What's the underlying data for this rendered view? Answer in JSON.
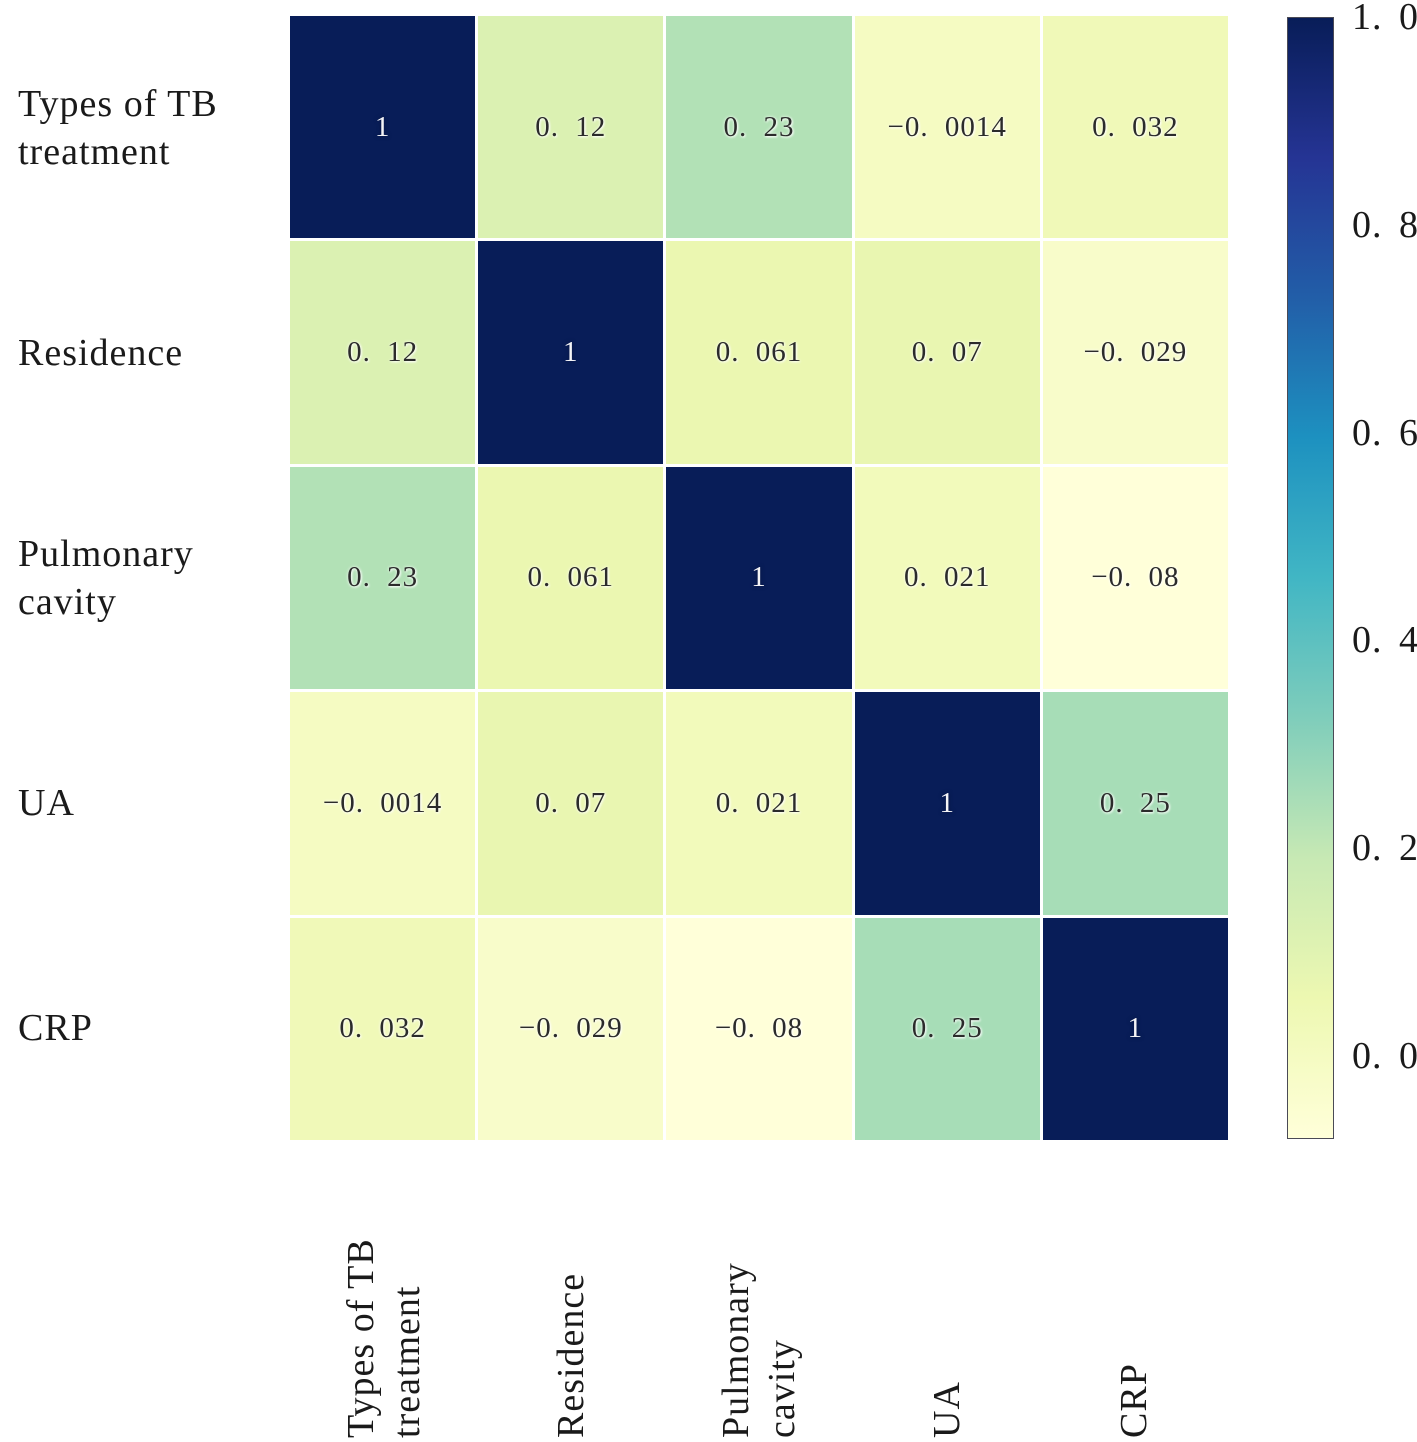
{
  "chart_data": {
    "type": "heatmap",
    "variables": [
      "Types of TB treatment",
      "Residence",
      "Pulmonary cavity",
      "UA",
      "CRP"
    ],
    "row_label_lines": [
      [
        "Types of TB",
        "treatment"
      ],
      [
        "Residence"
      ],
      [
        "Pulmonary",
        "cavity"
      ],
      [
        "UA"
      ],
      [
        "CRP"
      ]
    ],
    "col_label_lines": [
      [
        "Types of TB",
        "treatment"
      ],
      [
        "Residence"
      ],
      [
        "Pulmonary",
        "cavity"
      ],
      [
        "UA"
      ],
      [
        "CRP"
      ]
    ],
    "matrix": [
      [
        1,
        0.12,
        0.23,
        -0.0014,
        0.032
      ],
      [
        0.12,
        1,
        0.061,
        0.07,
        -0.029
      ],
      [
        0.23,
        0.061,
        1,
        0.021,
        -0.08
      ],
      [
        -0.0014,
        0.07,
        0.021,
        1,
        0.25
      ],
      [
        0.032,
        -0.029,
        -0.08,
        0.25,
        1
      ]
    ],
    "cell_labels": [
      [
        "1",
        "0. 12",
        "0. 23",
        "−0. 0014",
        "0. 032"
      ],
      [
        "0. 12",
        "1",
        "0. 061",
        "0. 07",
        "−0. 029"
      ],
      [
        "0. 23",
        "0. 061",
        "1",
        "0. 021",
        "−0. 08"
      ],
      [
        "−0. 0014",
        "0. 07",
        "0. 021",
        "1",
        "0. 25"
      ],
      [
        "0. 032",
        "−0. 029",
        "−0. 08",
        "0. 25",
        "1"
      ]
    ],
    "vmin": -0.08,
    "vmax": 1.0,
    "grid": false,
    "colorbar": {
      "position": "right",
      "tick_labels": [
        "1. 0",
        "0. 8",
        "0. 6",
        "0. 4",
        "0. 2",
        "0. 0"
      ],
      "tick_values": [
        1.0,
        0.8,
        0.6,
        0.4,
        0.2,
        0.0
      ]
    },
    "colormap": {
      "name": "YlGnBu (high = dark navy)",
      "stops": [
        "#ffffd9",
        "#edf8b1",
        "#c7e9b4",
        "#7fcdbb",
        "#41b6c4",
        "#1d91c0",
        "#225ea8",
        "#253494",
        "#081d58"
      ]
    }
  },
  "colors": {
    "background": "#ffffff",
    "cell_gap": "#ffffff",
    "axis_text": "#1a1a1a",
    "cell_text_dark": "#2b2b2b",
    "cell_text_light": "#f4f4f6",
    "colorbar_border": "#4a4a55"
  }
}
